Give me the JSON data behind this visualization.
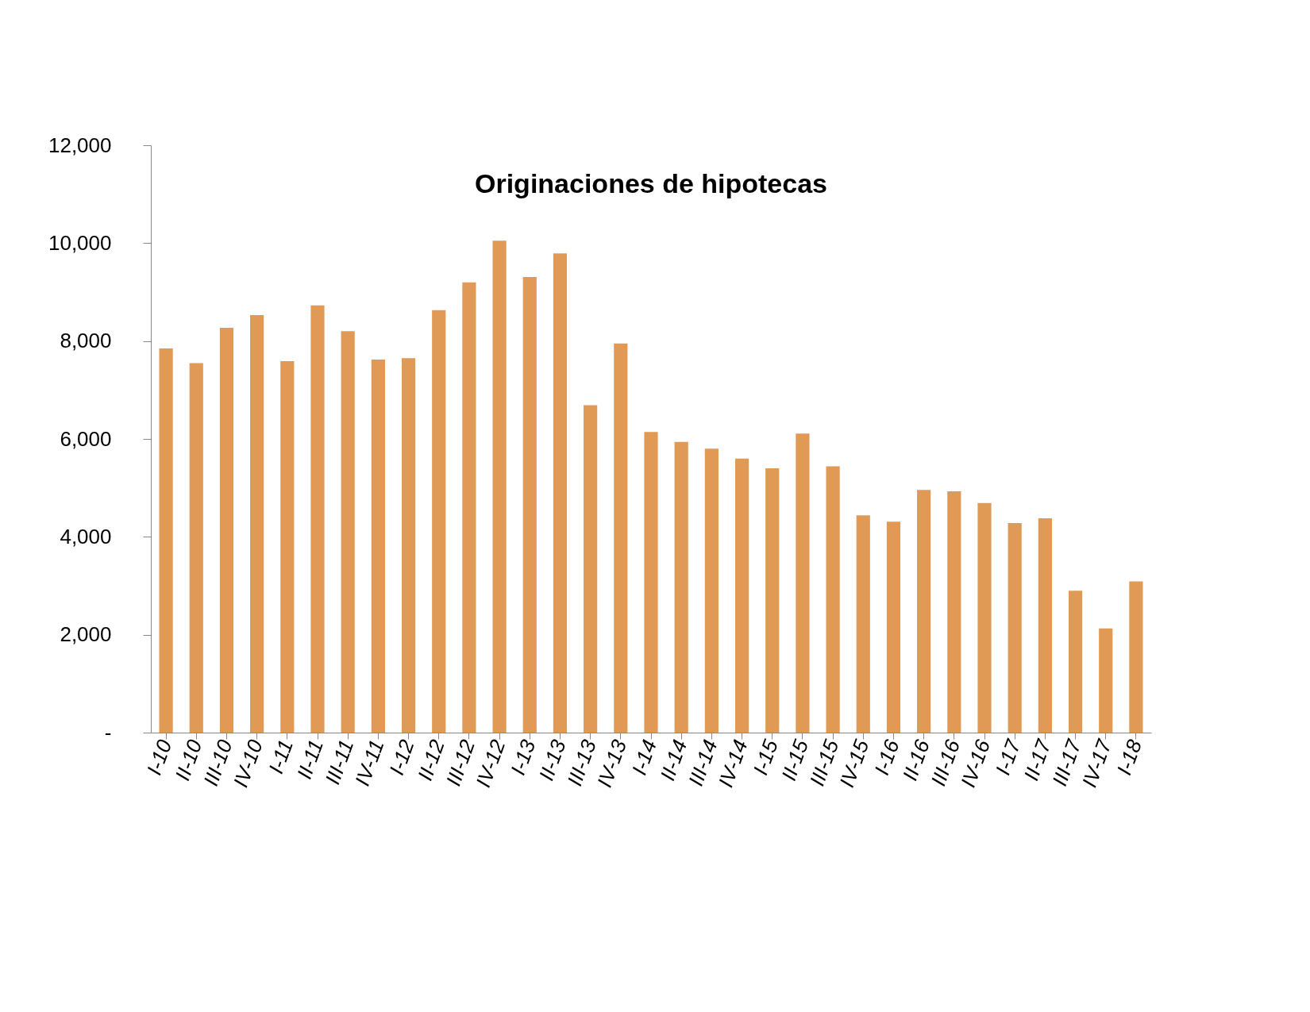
{
  "chart_data": {
    "type": "bar",
    "title": "Originaciones de hipotecas",
    "categories": [
      "I-10",
      "II-10",
      "III-10",
      "IV-10",
      "I-11",
      "II-11",
      "III-11",
      "IV-11",
      "I-12",
      "II-12",
      "III-12",
      "IV-12",
      "I-13",
      "II-13",
      "III-13",
      "IV-13",
      "I-14",
      "II-14",
      "III-14",
      "IV-14",
      "I-15",
      "II-15",
      "III-15",
      "IV-15",
      "I-16",
      "II-16",
      "III-16",
      "IV-16",
      "I-17",
      "II-17",
      "III-17",
      "IV-17",
      "I-18"
    ],
    "values": [
      7850,
      7550,
      8270,
      8530,
      7590,
      8730,
      8200,
      7620,
      7650,
      8630,
      9200,
      10050,
      9310,
      9790,
      6690,
      7950,
      6140,
      5940,
      5800,
      5600,
      5400,
      6110,
      5440,
      4440,
      4310,
      4960,
      4930,
      4690,
      4280,
      4380,
      2900,
      2130,
      3090
    ],
    "color": "#e09a55",
    "ylim": [
      0,
      12000
    ],
    "yticks": [
      {
        "value": 0,
        "label": "-"
      },
      {
        "value": 2000,
        "label": "2,000"
      },
      {
        "value": 4000,
        "label": "4,000"
      },
      {
        "value": 6000,
        "label": "6,000"
      },
      {
        "value": 8000,
        "label": "8,000"
      },
      {
        "value": 10000,
        "label": "10,000"
      },
      {
        "value": 12000,
        "label": "12,000"
      }
    ],
    "grid": false
  }
}
